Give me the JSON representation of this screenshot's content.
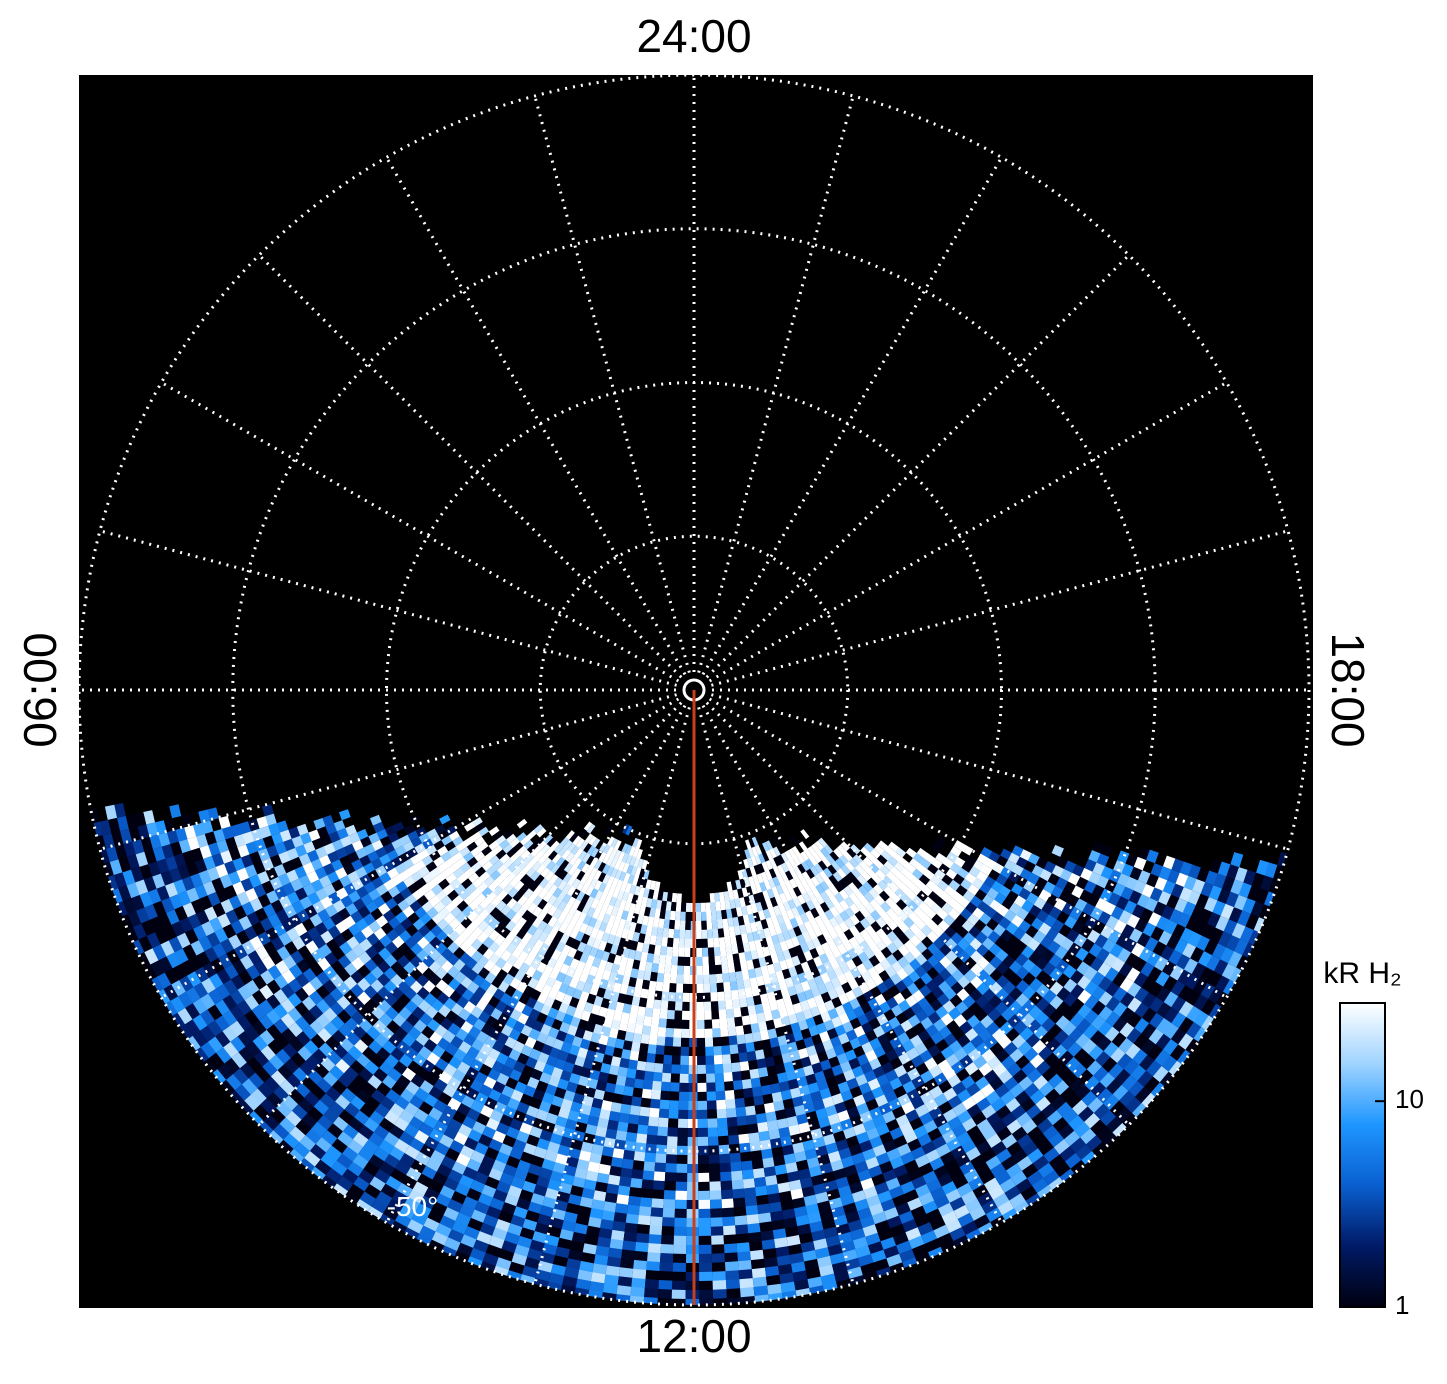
{
  "chart_data": {
    "type": "polar-image",
    "hour_labels": [
      {
        "value": 0,
        "label": "24:00"
      },
      {
        "value": 6,
        "label": "06:00"
      },
      {
        "value": 12,
        "label": "12:00"
      },
      {
        "value": 18,
        "label": "18:00"
      }
    ],
    "rlim": [
      -90,
      -50
    ],
    "rgrid": [
      -80,
      -70,
      -60,
      -50
    ],
    "rlabel": {
      "value": -50,
      "label": "-50°"
    },
    "meridian_step_hours": 1,
    "reference_meridian": {
      "hour": 12,
      "color": "#c8401a"
    },
    "colorbar": {
      "label": "kR H₂",
      "scale": "log",
      "lim": [
        1,
        30
      ],
      "ticks": [
        1,
        10
      ],
      "colors": [
        "#000010",
        "#001a66",
        "#0a5fd0",
        "#1e96ff",
        "#9fd3ff",
        "#ffffff"
      ]
    }
  }
}
